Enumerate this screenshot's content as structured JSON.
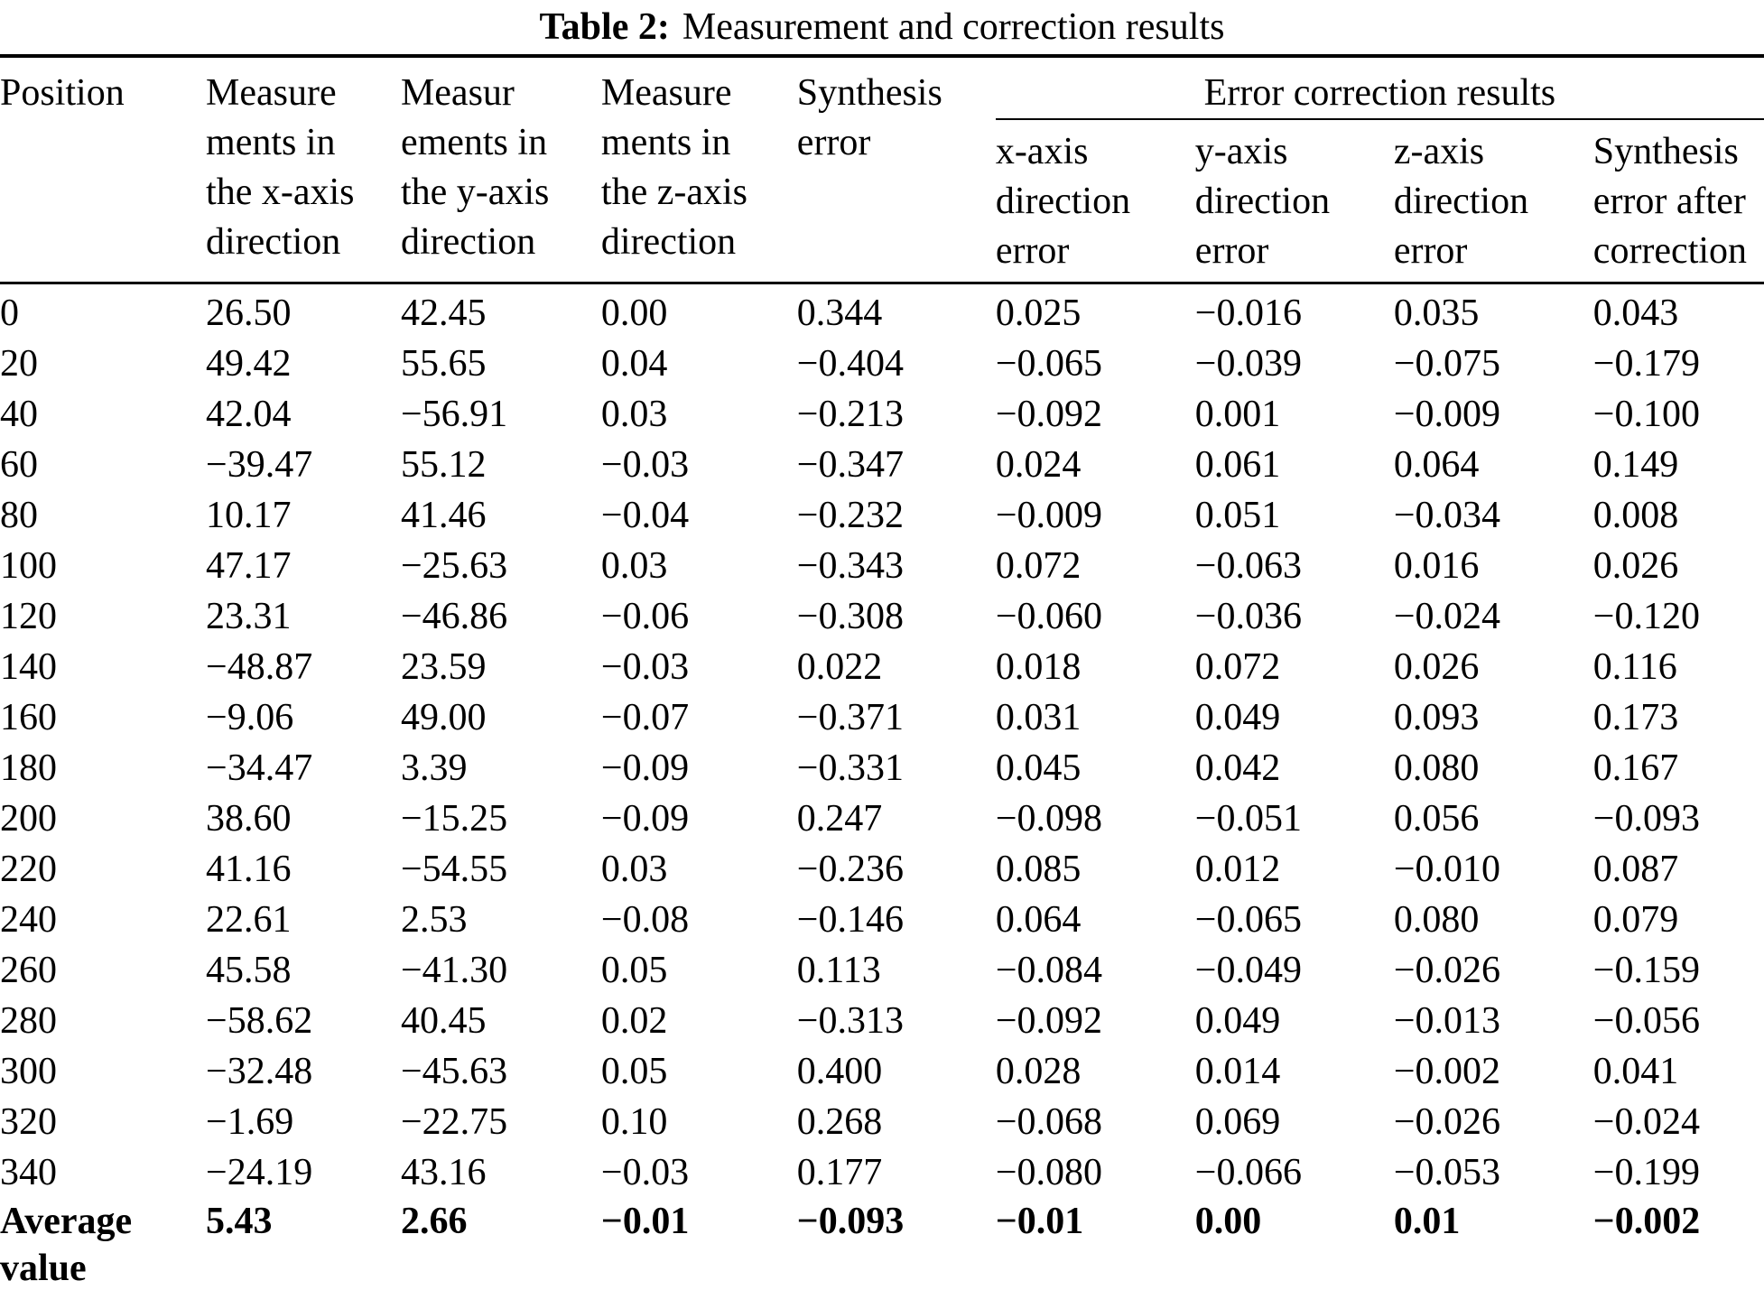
{
  "title": {
    "label": "Table 2:",
    "text": "Measurement and correction results"
  },
  "table": {
    "group_header": "Error correction results",
    "columns": [
      {
        "id": "position",
        "header": "Position"
      },
      {
        "id": "meas_x",
        "header": "Measure\nments in\nthe x-axis\ndirection"
      },
      {
        "id": "meas_y",
        "header": "Measur\nements in\nthe y-axis\ndirection"
      },
      {
        "id": "meas_z",
        "header": "Measure\nments in\nthe z-axis\ndirection"
      },
      {
        "id": "synthesis_error",
        "header": "Synthesis\nerror"
      },
      {
        "id": "err_x",
        "header": "x-axis\ndirection\nerror"
      },
      {
        "id": "err_y",
        "header": "y-axis\ndirection\nerror"
      },
      {
        "id": "err_z",
        "header": "z-axis\ndirection\nerror"
      },
      {
        "id": "synthesis_after",
        "header": "Synthesis\nerror after\ncorrection"
      }
    ],
    "rows": [
      [
        "0",
        "26.50",
        "42.45",
        "0.00",
        "0.344",
        "0.025",
        "−0.016",
        "0.035",
        "0.043"
      ],
      [
        "20",
        "49.42",
        "55.65",
        "0.04",
        "−0.404",
        "−0.065",
        "−0.039",
        "−0.075",
        "−0.179"
      ],
      [
        "40",
        "42.04",
        "−56.91",
        "0.03",
        "−0.213",
        "−0.092",
        "0.001",
        "−0.009",
        "−0.100"
      ],
      [
        "60",
        "−39.47",
        "55.12",
        "−0.03",
        "−0.347",
        "0.024",
        "0.061",
        "0.064",
        "0.149"
      ],
      [
        "80",
        "10.17",
        "41.46",
        "−0.04",
        "−0.232",
        "−0.009",
        "0.051",
        "−0.034",
        "0.008"
      ],
      [
        "100",
        "47.17",
        "−25.63",
        "0.03",
        "−0.343",
        "0.072",
        "−0.063",
        "0.016",
        "0.026"
      ],
      [
        "120",
        "23.31",
        "−46.86",
        "−0.06",
        "−0.308",
        "−0.060",
        "−0.036",
        "−0.024",
        "−0.120"
      ],
      [
        "140",
        "−48.87",
        "23.59",
        "−0.03",
        "0.022",
        "0.018",
        "0.072",
        "0.026",
        "0.116"
      ],
      [
        "160",
        "−9.06",
        "49.00",
        "−0.07",
        "−0.371",
        "0.031",
        "0.049",
        "0.093",
        "0.173"
      ],
      [
        "180",
        "−34.47",
        "3.39",
        "−0.09",
        "−0.331",
        "0.045",
        "0.042",
        "0.080",
        "0.167"
      ],
      [
        "200",
        "38.60",
        "−15.25",
        "−0.09",
        "0.247",
        "−0.098",
        "−0.051",
        "0.056",
        "−0.093"
      ],
      [
        "220",
        "41.16",
        "−54.55",
        "0.03",
        "−0.236",
        "0.085",
        "0.012",
        "−0.010",
        "0.087"
      ],
      [
        "240",
        "22.61",
        "2.53",
        "−0.08",
        "−0.146",
        "0.064",
        "−0.065",
        "0.080",
        "0.079"
      ],
      [
        "260",
        "45.58",
        "−41.30",
        "0.05",
        "0.113",
        "−0.084",
        "−0.049",
        "−0.026",
        "−0.159"
      ],
      [
        "280",
        "−58.62",
        "40.45",
        "0.02",
        "−0.313",
        "−0.092",
        "0.049",
        "−0.013",
        "−0.056"
      ],
      [
        "300",
        "−32.48",
        "−45.63",
        "0.05",
        "0.400",
        "0.028",
        "0.014",
        "−0.002",
        "0.041"
      ],
      [
        "320",
        "−1.69",
        "−22.75",
        "0.10",
        "0.268",
        "−0.068",
        "0.069",
        "−0.026",
        "−0.024"
      ],
      [
        "340",
        "−24.19",
        "43.16",
        "−0.03",
        "0.177",
        "−0.080",
        "−0.066",
        "−0.053",
        "−0.199"
      ]
    ],
    "footer_row": [
      "Average\nvalue",
      "5.43",
      "2.66",
      "−0.01",
      "−0.093",
      "−0.01",
      "0.00",
      "0.01",
      "−0.002"
    ]
  }
}
